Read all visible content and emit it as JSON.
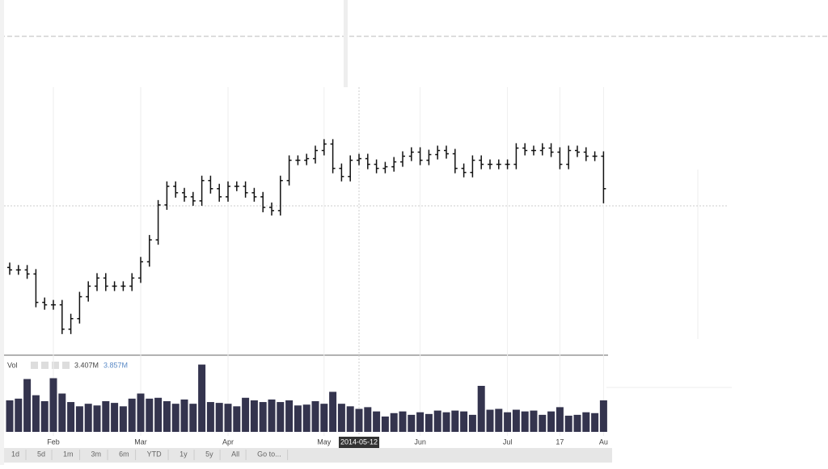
{
  "chart_data": {
    "type": "ohlc",
    "categories": [
      null,
      null,
      null,
      null,
      null,
      "Feb",
      null,
      null,
      null,
      null,
      null,
      null,
      null,
      null,
      null,
      "Mar",
      null,
      null,
      null,
      null,
      null,
      null,
      null,
      null,
      null,
      "Apr",
      null,
      null,
      null,
      null,
      null,
      null,
      null,
      null,
      null,
      null,
      "May",
      null,
      null,
      null,
      "2014-05-12",
      null,
      null,
      null,
      null,
      null,
      null,
      "Jun",
      null,
      null,
      null,
      null,
      null,
      null,
      null,
      null,
      null,
      "Jul",
      null,
      null,
      null,
      null,
      null,
      "17",
      null,
      null,
      null,
      null,
      "Au"
    ],
    "open": [
      108,
      105,
      105,
      100,
      65,
      62,
      62,
      32,
      45,
      72,
      85,
      95,
      85,
      85,
      85,
      95,
      115,
      142,
      185,
      208,
      200,
      195,
      190,
      215,
      205,
      195,
      208,
      208,
      200,
      195,
      182,
      178,
      215,
      240,
      240,
      242,
      252,
      260,
      230,
      220,
      240,
      242,
      235,
      230,
      232,
      238,
      245,
      250,
      240,
      247,
      252,
      248,
      230,
      225,
      240,
      235,
      235,
      235,
      235,
      255,
      252,
      252,
      255,
      250,
      235,
      252,
      250,
      245,
      245
    ],
    "high": [
      114,
      111,
      111,
      106,
      71,
      68,
      68,
      51,
      78,
      91,
      101,
      101,
      91,
      91,
      101,
      121,
      148,
      191,
      214,
      214,
      206,
      201,
      221,
      221,
      211,
      214,
      214,
      214,
      206,
      201,
      188,
      221,
      246,
      246,
      248,
      258,
      266,
      266,
      236,
      246,
      248,
      248,
      241,
      238,
      244,
      251,
      256,
      256,
      253,
      258,
      258,
      254,
      236,
      246,
      246,
      241,
      241,
      241,
      261,
      261,
      258,
      261,
      261,
      256,
      258,
      258,
      256,
      251,
      251
    ],
    "low": [
      99,
      99,
      94,
      59,
      56,
      56,
      26,
      26,
      39,
      66,
      79,
      79,
      79,
      79,
      79,
      89,
      109,
      136,
      179,
      194,
      189,
      184,
      184,
      199,
      189,
      189,
      202,
      194,
      189,
      176,
      172,
      172,
      209,
      234,
      234,
      236,
      246,
      224,
      214,
      214,
      234,
      229,
      224,
      224,
      226,
      232,
      239,
      234,
      234,
      241,
      242,
      224,
      219,
      219,
      229,
      229,
      229,
      229,
      229,
      246,
      246,
      246,
      244,
      229,
      229,
      244,
      239,
      239,
      187
    ],
    "close": [
      105,
      105,
      100,
      65,
      62,
      62,
      32,
      45,
      72,
      85,
      95,
      85,
      85,
      85,
      95,
      115,
      142,
      185,
      208,
      200,
      195,
      190,
      215,
      205,
      195,
      208,
      208,
      200,
      195,
      182,
      178,
      215,
      240,
      240,
      242,
      252,
      260,
      230,
      220,
      240,
      242,
      235,
      230,
      232,
      238,
      245,
      250,
      240,
      247,
      252,
      248,
      230,
      225,
      240,
      235,
      235,
      235,
      235,
      255,
      252,
      252,
      255,
      250,
      235,
      252,
      250,
      245,
      245,
      205
    ],
    "ylim": [
      0,
      330
    ],
    "grid": true,
    "crosshair": 40,
    "color": "#111111",
    "volume": {
      "label": "Vol",
      "readouts": [
        "3.407M",
        "3.857M"
      ],
      "color": "#34344e",
      "ylim": [
        0,
        9
      ],
      "values": [
        3.7,
        3.9,
        6.2,
        4.3,
        3.6,
        6.3,
        4.5,
        3.5,
        3.0,
        3.3,
        3.1,
        3.6,
        3.4,
        3.0,
        3.9,
        4.5,
        3.9,
        4.0,
        3.6,
        3.3,
        3.8,
        3.3,
        7.9,
        3.5,
        3.4,
        3.3,
        3.0,
        4.0,
        3.7,
        3.5,
        3.8,
        3.5,
        3.7,
        3.1,
        3.2,
        3.6,
        3.3,
        4.7,
        3.3,
        3.0,
        2.7,
        2.9,
        2.4,
        1.8,
        2.2,
        2.4,
        2.0,
        2.3,
        2.1,
        2.5,
        2.3,
        2.5,
        2.4,
        2.0,
        5.4,
        2.6,
        2.7,
        2.3,
        2.6,
        2.4,
        2.5,
        2.0,
        2.4,
        2.9,
        1.9,
        2.0,
        2.3,
        2.2,
        3.7
      ]
    }
  },
  "range_buttons": [
    "1d",
    "5d",
    "1m",
    "3m",
    "6m",
    "YTD",
    "1y",
    "5y",
    "All",
    "Go to..."
  ]
}
